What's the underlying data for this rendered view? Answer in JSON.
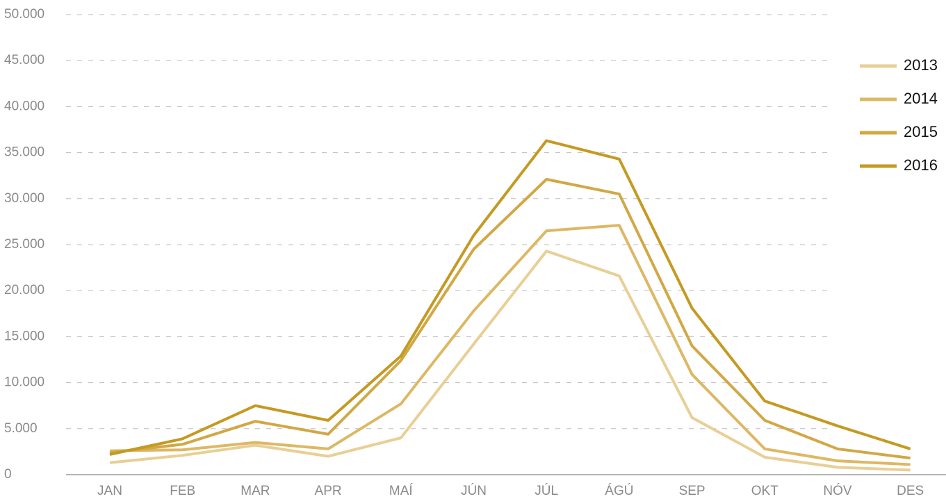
{
  "chart_data": {
    "type": "line",
    "categories": [
      "JAN",
      "FEB",
      "MAR",
      "APR",
      "MAÍ",
      "JÚN",
      "JÚL",
      "ÁGÚ",
      "SEP",
      "OKT",
      "NÓV",
      "DES"
    ],
    "series": [
      {
        "name": "2013",
        "color": "#e8cf95",
        "values": [
          1300,
          2100,
          3200,
          2000,
          4000,
          14200,
          24300,
          21600,
          6200,
          1900,
          800,
          500
        ]
      },
      {
        "name": "2014",
        "color": "#ddb864",
        "values": [
          2600,
          2700,
          3500,
          2800,
          7700,
          17800,
          26500,
          27100,
          10900,
          2800,
          1500,
          1100
        ]
      },
      {
        "name": "2015",
        "color": "#d1a845",
        "values": [
          2400,
          3300,
          5800,
          4400,
          12400,
          24500,
          32100,
          30500,
          14000,
          5900,
          2800,
          1800
        ]
      },
      {
        "name": "2016",
        "color": "#c59a22",
        "values": [
          2200,
          3900,
          7500,
          5900,
          12900,
          26000,
          36300,
          34300,
          18100,
          8000,
          5300,
          2800
        ]
      }
    ],
    "ylim": [
      0,
      50000
    ],
    "yticks": [
      0,
      {
        "value": 5000,
        "label": "5.000"
      },
      {
        "value": 10000,
        "label": "10.000"
      },
      {
        "value": 15000,
        "label": "15.000"
      },
      {
        "value": 20000,
        "label": "20.000"
      },
      {
        "value": 25000,
        "label": "25.000"
      },
      {
        "value": 30000,
        "label": "30.000"
      },
      {
        "value": 35000,
        "label": "35.000"
      },
      {
        "value": 40000,
        "label": "40.000"
      },
      {
        "value": 45000,
        "label": "45.000"
      },
      {
        "value": 50000,
        "label": "50.000"
      }
    ],
    "grid": true
  }
}
